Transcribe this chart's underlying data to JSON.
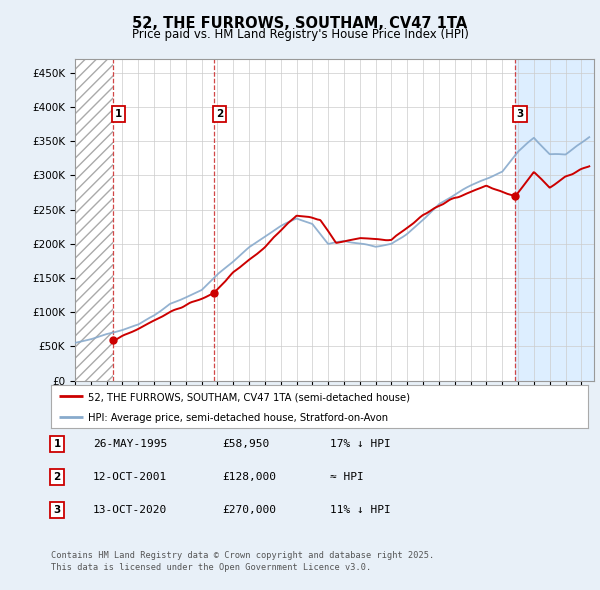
{
  "title": "52, THE FURROWS, SOUTHAM, CV47 1TA",
  "subtitle": "Price paid vs. HM Land Registry's House Price Index (HPI)",
  "ylim": [
    0,
    470000
  ],
  "xlim_start": 1993.0,
  "xlim_end": 2025.8,
  "hatch_region_end_year": 1995.42,
  "future_region_start_year": 2020.79,
  "sale_points": [
    {
      "year": 1995.42,
      "price": 58950,
      "label": "1"
    },
    {
      "year": 2001.79,
      "price": 128000,
      "label": "2"
    },
    {
      "year": 2020.79,
      "price": 270000,
      "label": "3"
    }
  ],
  "sale_vlines": [
    1995.42,
    2001.79,
    2020.79
  ],
  "legend_entries": [
    {
      "color": "#cc0000",
      "label": "52, THE FURROWS, SOUTHAM, CV47 1TA (semi-detached house)"
    },
    {
      "color": "#88aacc",
      "label": "HPI: Average price, semi-detached house, Stratford-on-Avon"
    }
  ],
  "table_rows": [
    {
      "num": "1",
      "date": "26-MAY-1995",
      "price": "£58,950",
      "note": "17% ↓ HPI"
    },
    {
      "num": "2",
      "date": "12-OCT-2001",
      "price": "£128,000",
      "note": "≈ HPI"
    },
    {
      "num": "3",
      "date": "13-OCT-2020",
      "price": "£270,000",
      "note": "11% ↓ HPI"
    }
  ],
  "footnote": "Contains HM Land Registry data © Crown copyright and database right 2025.\nThis data is licensed under the Open Government Licence v3.0.",
  "bg_color": "#e8f0f8",
  "plot_bg_color": "#ffffff",
  "future_bg_color": "#ddeeff",
  "grid_color": "#cccccc",
  "red_line_color": "#cc0000",
  "blue_line_color": "#88aacc",
  "hpi_base_points_x": [
    1993.0,
    1994,
    1995,
    1996,
    1997,
    1998,
    1999,
    2000,
    2001,
    2002,
    2003,
    2004,
    2005,
    2006,
    2007,
    2008,
    2009,
    2010,
    2011,
    2012,
    2013,
    2014,
    2015,
    2016,
    2017,
    2018,
    2019,
    2020,
    2021,
    2022,
    2023,
    2024,
    2025.5
  ],
  "hpi_base_points_y": [
    55000,
    60000,
    68000,
    74000,
    82000,
    95000,
    112000,
    122000,
    132000,
    155000,
    175000,
    195000,
    210000,
    225000,
    238000,
    230000,
    200000,
    205000,
    200000,
    195000,
    198000,
    215000,
    235000,
    258000,
    272000,
    285000,
    295000,
    305000,
    335000,
    355000,
    330000,
    330000,
    355000
  ],
  "red_base_points_x": [
    1995.42,
    1997,
    1999,
    2001.79,
    2003,
    2005,
    2007,
    2008.5,
    2009.5,
    2011,
    2013,
    2015,
    2017,
    2019,
    2020.79,
    2021.5,
    2022,
    2023,
    2024,
    2025.5
  ],
  "red_base_points_y": [
    58950,
    75000,
    100000,
    128000,
    158000,
    195000,
    242000,
    235000,
    200000,
    208000,
    205000,
    242000,
    268000,
    285000,
    270000,
    290000,
    305000,
    282000,
    298000,
    315000
  ]
}
